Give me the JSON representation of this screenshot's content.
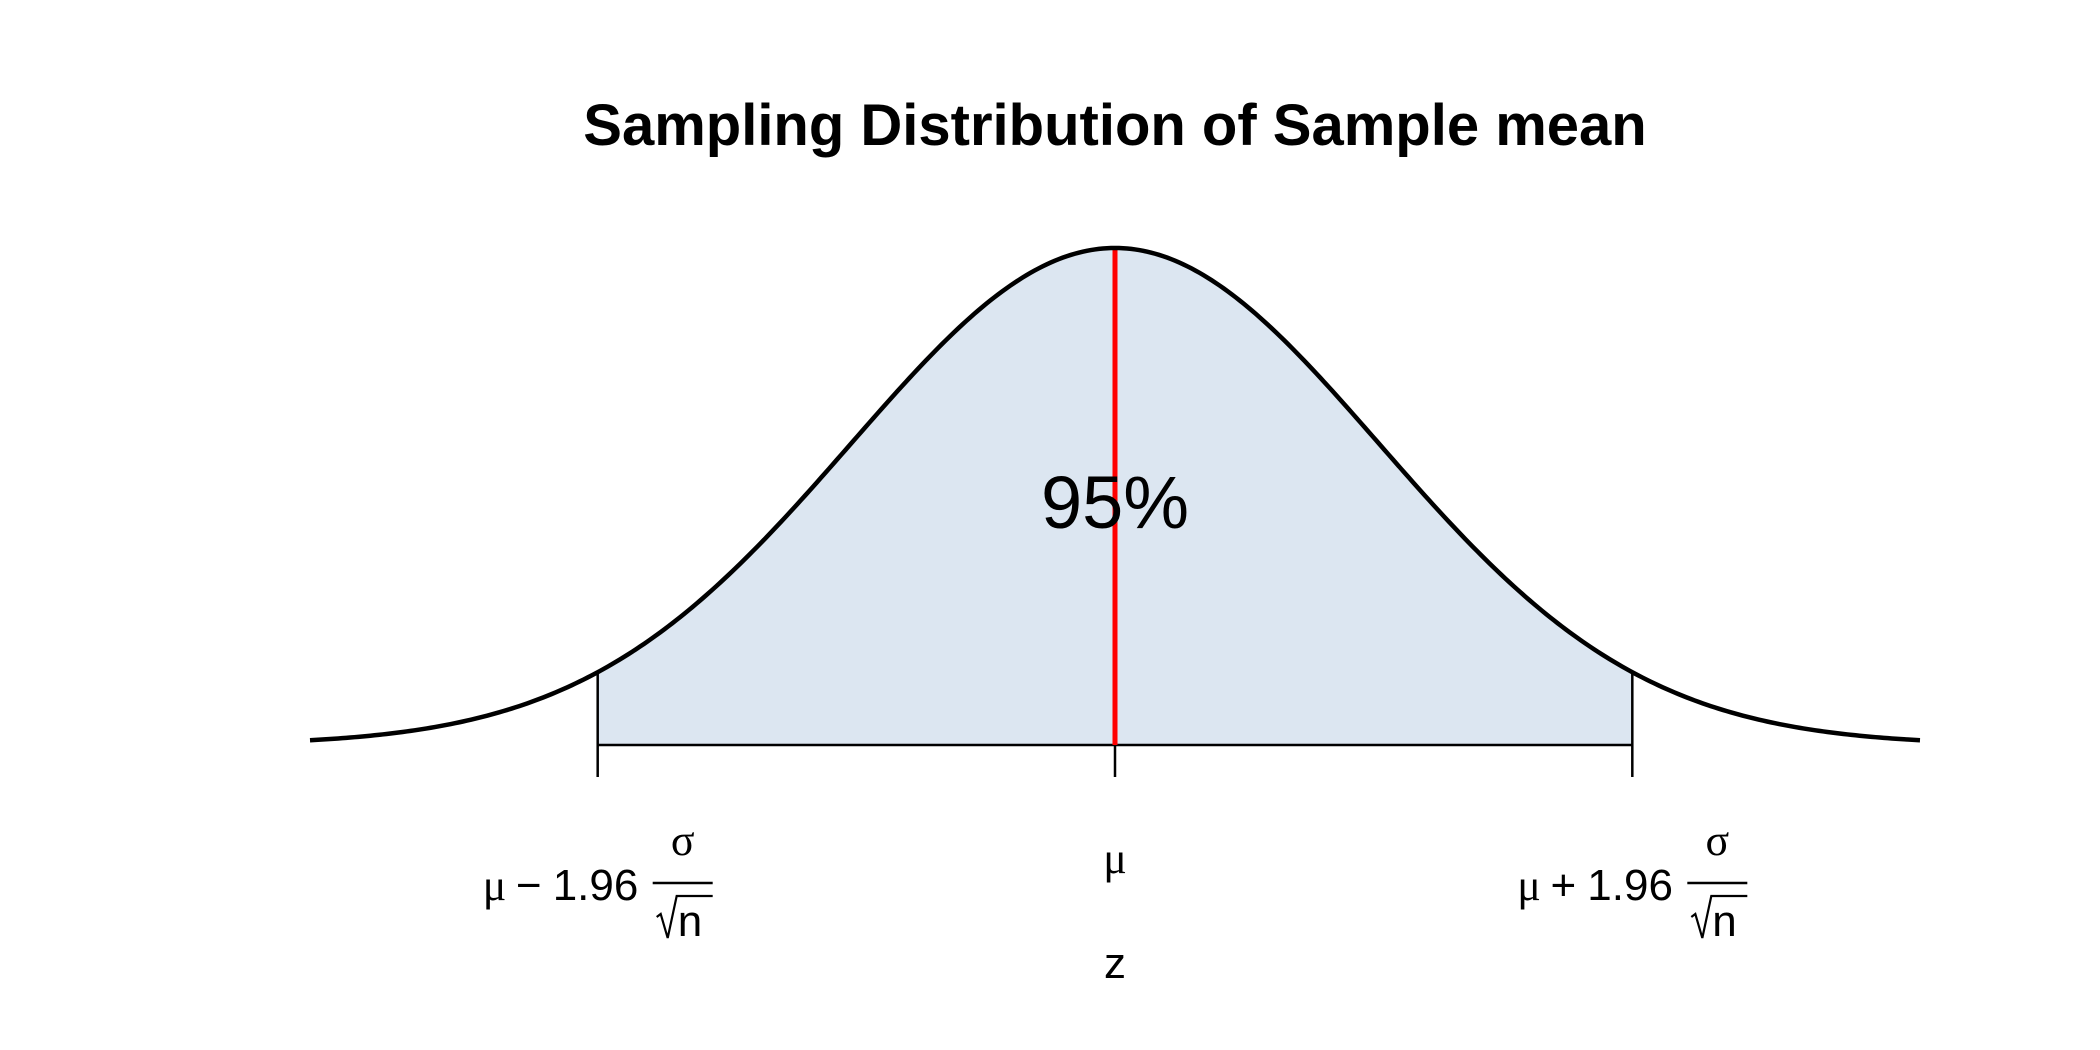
{
  "chart_data": {
    "type": "area",
    "title": "Sampling Distribution of Sample mean",
    "xlabel": "z",
    "ylabel": "",
    "xlim": [
      -3.05,
      3.05
    ],
    "distribution": "standard normal",
    "shaded_interval": [
      -1.96,
      1.96
    ],
    "shaded_label": "95%",
    "mean_line_x": 0,
    "ticks": [
      {
        "x": -1.96,
        "mu": "μ",
        "op": "−",
        "coef": "1.96",
        "numerator": "σ",
        "denominator": "n"
      },
      {
        "x": 0,
        "mu": "μ"
      },
      {
        "x": 1.96,
        "mu": "μ",
        "op": "+",
        "coef": "1.96",
        "numerator": "σ",
        "denominator": "n"
      }
    ],
    "colors": {
      "fill": "#dce6f1",
      "curve": "#000000",
      "mean_line": "#ff0000"
    }
  }
}
